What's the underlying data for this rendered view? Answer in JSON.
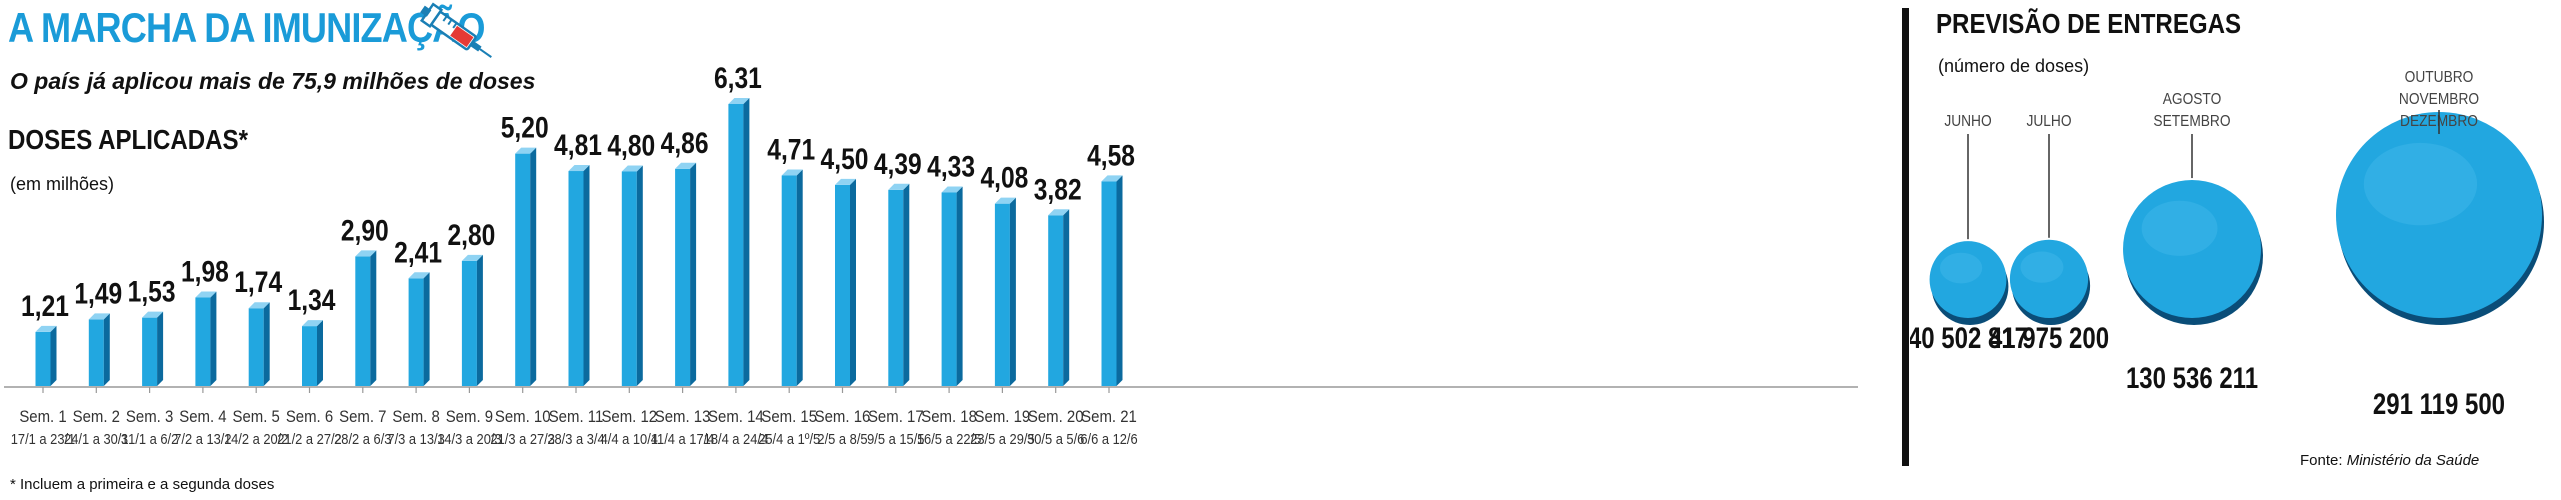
{
  "header": {
    "title": "A MARCHA DA IMUNIZAÇÃO",
    "subtitle": "O país já aplicou mais de 75,9 milhões de doses"
  },
  "doses_section": {
    "title": "DOSES APLICADAS*",
    "unit": "(em milhões)",
    "footnote": "* Incluem a primeira e a segunda doses"
  },
  "delivery_section": {
    "title": "PREVISÃO DE ENTREGAS",
    "unit": "(número de doses)",
    "source_label": "Fonte:",
    "source_name": "Ministério da Saúde"
  },
  "colors": {
    "accent": "#1a9bd8",
    "bar_front": "#22a7e0",
    "bar_side": "#0b6a9e",
    "bar_top": "#8fd3f3",
    "bubble_shadow": "#0a4d78",
    "axis": "#999999"
  },
  "chart_data": [
    {
      "type": "bar",
      "title": "DOSES APLICADAS*",
      "ylabel": "(em milhões)",
      "ylim": [
        0,
        7
      ],
      "grid": false,
      "categories": [
        "Sem. 1",
        "Sem. 2",
        "Sem. 3",
        "Sem. 4",
        "Sem. 5",
        "Sem. 6",
        "Sem. 7",
        "Sem. 8",
        "Sem. 9",
        "Sem. 10",
        "Sem. 11",
        "Sem. 12",
        "Sem. 13",
        "Sem. 14",
        "Sem. 15",
        "Sem. 16",
        "Sem. 17",
        "Sem. 18",
        "Sem. 19",
        "Sem. 20",
        "Sem. 21"
      ],
      "dates": [
        "17/1 a 23/1",
        "24/1 a 30/1",
        "31/1 a 6/2",
        "7/2 a 13/2",
        "14/2 a 20/2",
        "21/2 a 27/2",
        "28/2 a 6/3",
        "7/3 a 13/3",
        "14/3 a 20/3",
        "21/3 a 27/3",
        "28/3 a 3/4",
        "4/4 a 10/4",
        "11/4 a 17/4",
        "18/4 a 24/4",
        "25/4 a 1º/5",
        "2/5 a 8/5",
        "9/5 a 15/5",
        "16/5 a 22/5",
        "23/5 a 29/5",
        "30/5 a 5/6",
        "6/6 a 12/6"
      ],
      "values": [
        1.21,
        1.49,
        1.53,
        1.98,
        1.74,
        1.34,
        2.9,
        2.41,
        2.8,
        5.2,
        4.81,
        4.8,
        4.86,
        6.31,
        4.71,
        4.5,
        4.39,
        4.33,
        4.08,
        3.82,
        4.58
      ],
      "value_labels": [
        "1,21",
        "1,49",
        "1,53",
        "1,98",
        "1,74",
        "1,34",
        "2,90",
        "2,41",
        "2,80",
        "5,20",
        "4,81",
        "4,80",
        "4,86",
        "6,31",
        "4,71",
        "4,50",
        "4,39",
        "4,33",
        "4,08",
        "3,82",
        "4,58"
      ]
    },
    {
      "type": "bubble",
      "title": "PREVISÃO DE ENTREGAS",
      "ylabel": "(número de doses)",
      "items": [
        {
          "period": [
            "JUNHO"
          ],
          "value": 40502817,
          "label": "40 502 817"
        },
        {
          "period": [
            "JULHO"
          ],
          "value": 41975200,
          "label": "41 975 200"
        },
        {
          "period": [
            "AGOSTO",
            "SETEMBRO"
          ],
          "value": 130536211,
          "label": "130 536 211"
        },
        {
          "period": [
            "OUTUBRO",
            "NOVEMBRO",
            "DEZEMBRO"
          ],
          "value": 291119500,
          "label": "291 119 500"
        }
      ]
    }
  ]
}
